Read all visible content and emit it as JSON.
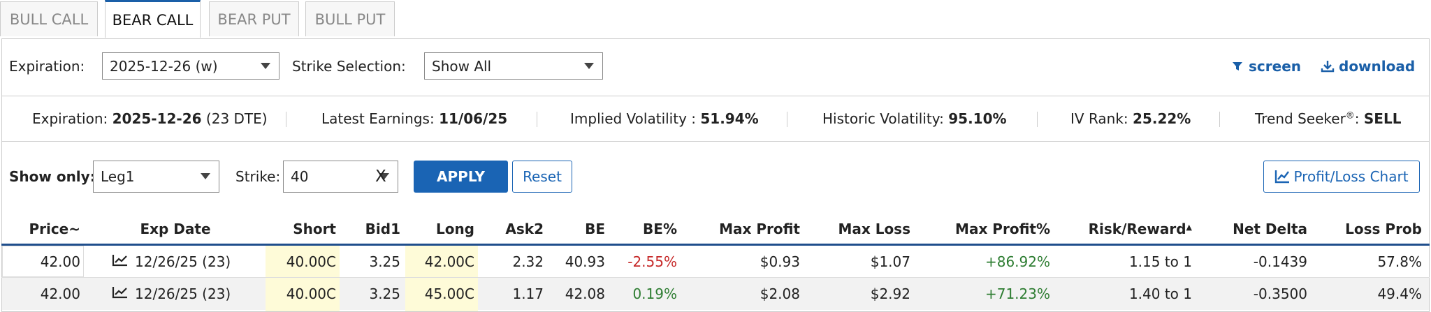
{
  "tabs": [
    "BULL CALL",
    "BEAR CALL",
    "BEAR PUT",
    "BULL PUT"
  ],
  "filters": {
    "expiration_label": "Expiration:",
    "expiration_value": "2025-12-26 (w)",
    "strike_label": "Strike Selection:",
    "strike_value": "Show All",
    "screen": "screen",
    "download": "download"
  },
  "stats": [
    {
      "label": "Expiration:",
      "value": "2025-12-26",
      "suffix": "(23 DTE)"
    },
    {
      "label": "Latest Earnings:",
      "value": "11/06/25"
    },
    {
      "label": "Implied Volatility :",
      "value": "51.94%"
    },
    {
      "label": "Historic Volatility:",
      "value": "95.10%"
    },
    {
      "label": "IV Rank:",
      "value": "25.22%"
    },
    {
      "label": "Trend Seeker",
      "sup": "®",
      "colon": ":",
      "value": "SELL"
    }
  ],
  "controls": {
    "show_only_label": "Show only:",
    "show_only_value": "Leg1",
    "strike_label": "Strike:",
    "strike_value": "40",
    "clear": "X",
    "apply": "APPLY",
    "reset": "Reset",
    "chart": "Profit/Loss Chart"
  },
  "table": {
    "headers": [
      "Price~",
      "Exp Date",
      "Short",
      "Bid1",
      "Long",
      "Ask2",
      "BE",
      "BE%",
      "Max Profit",
      "Max Loss",
      "Max Profit%",
      "Risk/Reward",
      "Net Delta",
      "Loss Prob"
    ],
    "rows": [
      [
        "42.00",
        "12/26/25 (23)",
        "40.00C",
        "3.25",
        "42.00C",
        "2.32",
        "40.93",
        "-2.55%",
        "$0.93",
        "$1.07",
        "+86.92%",
        "1.15 to 1",
        "-0.1439",
        "57.8%"
      ],
      [
        "42.00",
        "12/26/25 (23)",
        "40.00C",
        "3.25",
        "45.00C",
        "1.17",
        "42.08",
        "0.19%",
        "$2.08",
        "$2.92",
        "+71.23%",
        "1.40 to 1",
        "-0.3500",
        "49.4%"
      ]
    ]
  }
}
